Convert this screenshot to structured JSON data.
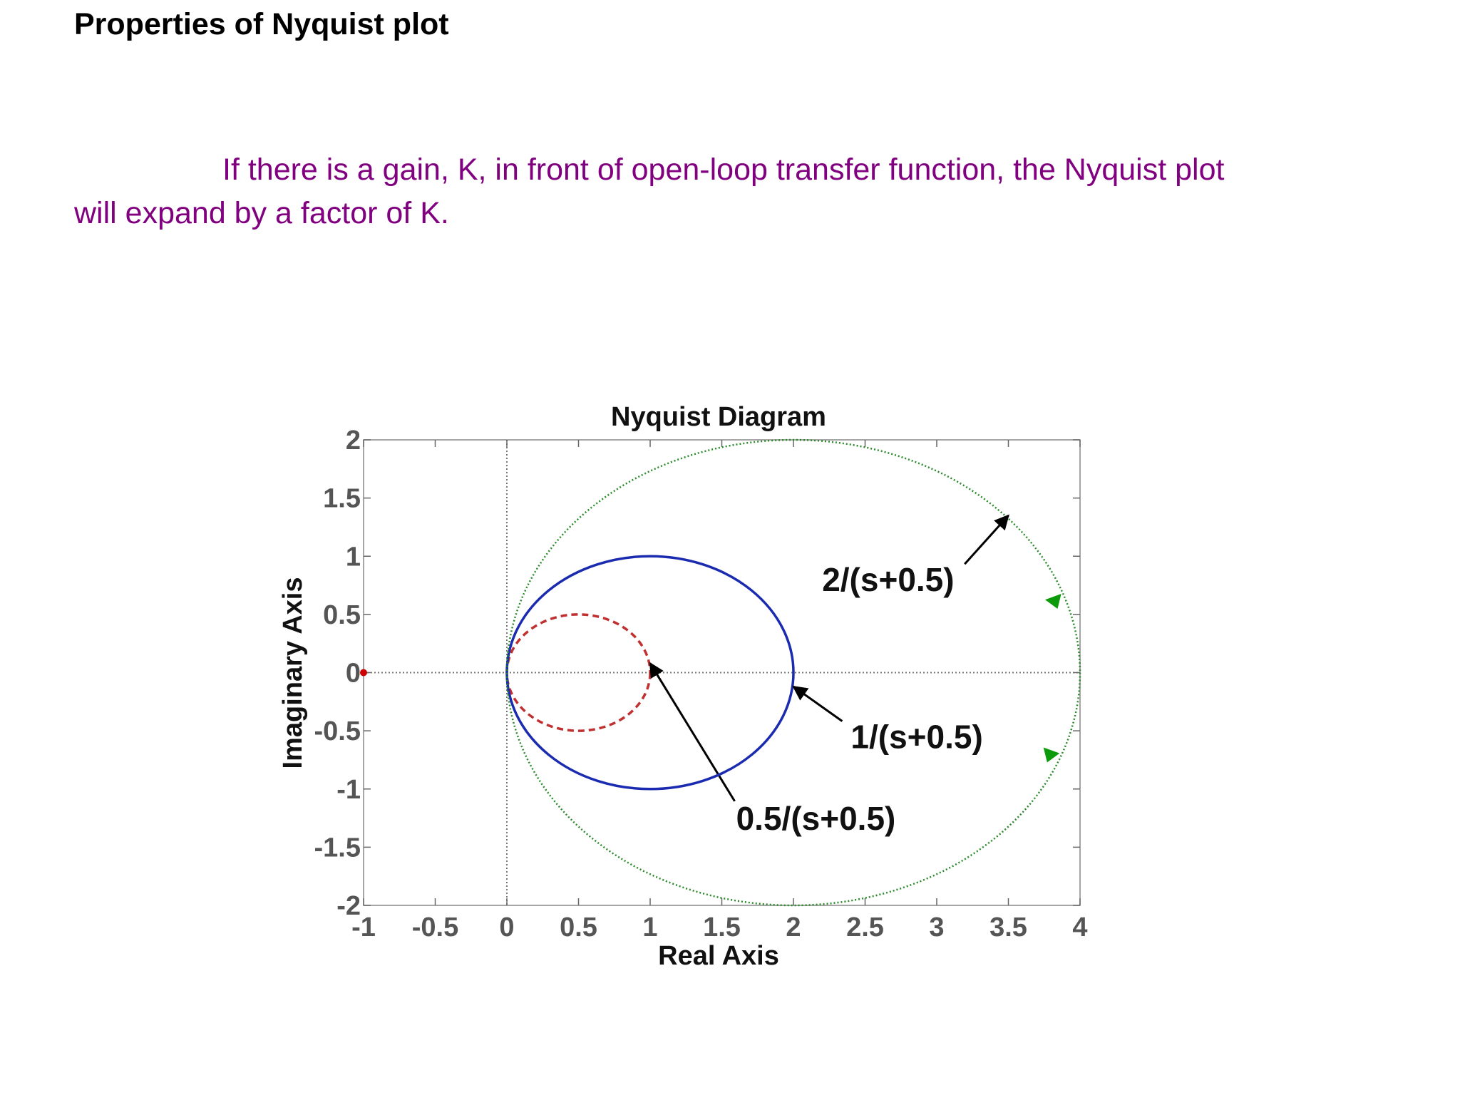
{
  "slide": {
    "title": "Properties of Nyquist plot",
    "body_line1": "If there is a gain, K, in front of open-loop transfer function, the Nyquist plot",
    "body_line2": "will expand by a factor of K."
  },
  "chart_data": {
    "type": "line",
    "title": "Nyquist Diagram",
    "xlabel": "Real Axis",
    "ylabel": "Imaginary Axis",
    "xlim": [
      -1,
      4
    ],
    "ylim": [
      -2,
      2
    ],
    "xticks": [
      "-1",
      "-0.5",
      "0",
      "0.5",
      "1",
      "1.5",
      "2",
      "2.5",
      "3",
      "3.5",
      "4"
    ],
    "yticks": [
      "2",
      "1.5",
      "1",
      "0.5",
      "0",
      "-0.5",
      "-1",
      "-1.5",
      "-2"
    ],
    "grid": false,
    "series": [
      {
        "name": "0.5/(s+0.5)",
        "center": [
          0.5,
          0
        ],
        "radius": 0.5,
        "color": "#c03030",
        "style": "dashed",
        "label_at": [
          1.6,
          -1.35
        ],
        "arrow_to": [
          1.0,
          0.08
        ]
      },
      {
        "name": "1/(s+0.5)",
        "center": [
          1,
          0
        ],
        "radius": 1,
        "color": "#1a2bb0",
        "style": "solid",
        "label_at": [
          2.4,
          -0.65
        ],
        "arrow_to": [
          2.0,
          -0.12
        ]
      },
      {
        "name": "2/(s+0.5)",
        "center": [
          2,
          0
        ],
        "radius": 2,
        "color": "#2a8a2a",
        "style": "dotted",
        "label_at": [
          2.2,
          0.7
        ],
        "arrow_to": [
          3.5,
          1.35
        ]
      }
    ],
    "colors": {
      "axis_ref": "#777777",
      "tick_text": "#555555",
      "critical_point": "#cc0000",
      "direction_marker": "#0a9a0a"
    }
  }
}
